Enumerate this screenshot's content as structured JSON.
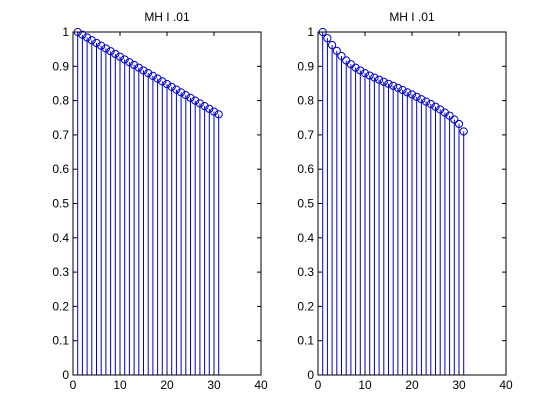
{
  "chart_data": [
    {
      "type": "stem",
      "title": "MH I .01",
      "xlabel": "",
      "ylabel": "",
      "xlim": [
        0,
        40
      ],
      "ylim": [
        0,
        1
      ],
      "x_ticks": [
        "0",
        "10",
        "20",
        "30",
        "40"
      ],
      "y_ticks": [
        "0",
        "0.1",
        "0.2",
        "0.3",
        "0.4",
        "0.5",
        "0.6",
        "0.7",
        "0.8",
        "0.9",
        "1"
      ],
      "grid": false,
      "marker": "circle",
      "color": "#0000c8",
      "x": [
        1,
        2,
        3,
        4,
        5,
        6,
        7,
        8,
        9,
        10,
        11,
        12,
        13,
        14,
        15,
        16,
        17,
        18,
        19,
        20,
        21,
        22,
        23,
        24,
        25,
        26,
        27,
        28,
        29,
        30,
        31
      ],
      "values": [
        1.0,
        0.992,
        0.984,
        0.976,
        0.968,
        0.96,
        0.952,
        0.944,
        0.936,
        0.928,
        0.92,
        0.912,
        0.904,
        0.896,
        0.888,
        0.88,
        0.872,
        0.864,
        0.856,
        0.848,
        0.84,
        0.832,
        0.824,
        0.816,
        0.808,
        0.8,
        0.792,
        0.784,
        0.776,
        0.768,
        0.76
      ]
    },
    {
      "type": "stem",
      "title": "MH I .01",
      "xlabel": "",
      "ylabel": "",
      "xlim": [
        0,
        40
      ],
      "ylim": [
        0,
        1
      ],
      "x_ticks": [
        "0",
        "10",
        "20",
        "30",
        "40"
      ],
      "y_ticks": [
        "0",
        "0.1",
        "0.2",
        "0.3",
        "0.4",
        "0.5",
        "0.6",
        "0.7",
        "0.8",
        "0.9",
        "1"
      ],
      "grid": false,
      "marker": "circle",
      "color": "#0000c8",
      "x": [
        1,
        2,
        3,
        4,
        5,
        6,
        7,
        8,
        9,
        10,
        11,
        12,
        13,
        14,
        15,
        16,
        17,
        18,
        19,
        20,
        21,
        22,
        23,
        24,
        25,
        26,
        27,
        28,
        29,
        30,
        31
      ],
      "values": [
        1.0,
        0.982,
        0.962,
        0.945,
        0.93,
        0.917,
        0.906,
        0.896,
        0.888,
        0.88,
        0.873,
        0.867,
        0.861,
        0.855,
        0.849,
        0.843,
        0.837,
        0.831,
        0.824,
        0.818,
        0.811,
        0.804,
        0.797,
        0.79,
        0.782,
        0.774,
        0.765,
        0.756,
        0.745,
        0.732,
        0.71
      ]
    }
  ]
}
